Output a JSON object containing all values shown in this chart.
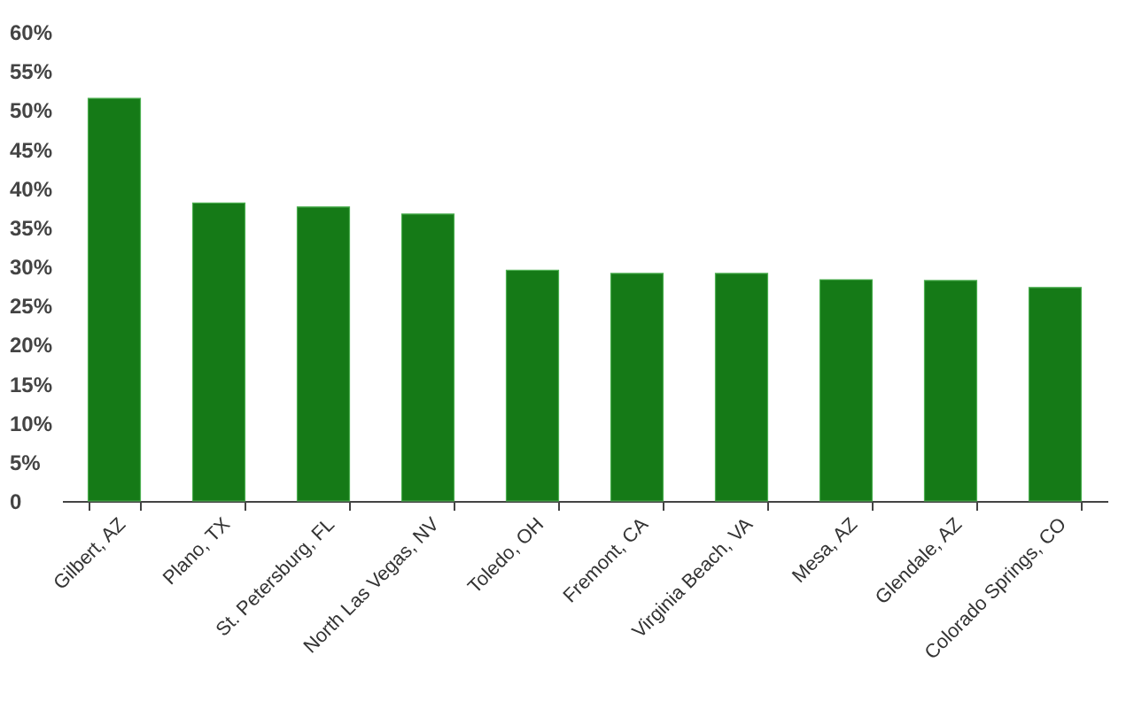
{
  "chart_data": {
    "type": "bar",
    "categories": [
      "Gilbert, AZ",
      "Plano, TX",
      "St. Petersburg, FL",
      "North Las Vegas, NV",
      "Toledo, OH",
      "Fremont, CA",
      "Virginia Beach, VA",
      "Mesa, AZ",
      "Glendale, AZ",
      "Colorado Springs, CO"
    ],
    "values": [
      51.5,
      38.1,
      37.6,
      36.7,
      29.5,
      29.1,
      29.1,
      28.3,
      28.2,
      27.3
    ],
    "color": "#157a17",
    "ylim": [
      0,
      60
    ],
    "yticks": [
      {
        "value": 0,
        "label": "0"
      },
      {
        "value": 5,
        "label": "5%"
      },
      {
        "value": 10,
        "label": "10%"
      },
      {
        "value": 15,
        "label": "15%"
      },
      {
        "value": 20,
        "label": "20%"
      },
      {
        "value": 25,
        "label": "25%"
      },
      {
        "value": 30,
        "label": "30%"
      },
      {
        "value": 35,
        "label": "35%"
      },
      {
        "value": 40,
        "label": "40%"
      },
      {
        "value": 45,
        "label": "45%"
      },
      {
        "value": 50,
        "label": "50%"
      },
      {
        "value": 55,
        "label": "55%"
      },
      {
        "value": 60,
        "label": "60%"
      }
    ],
    "grid": false
  }
}
